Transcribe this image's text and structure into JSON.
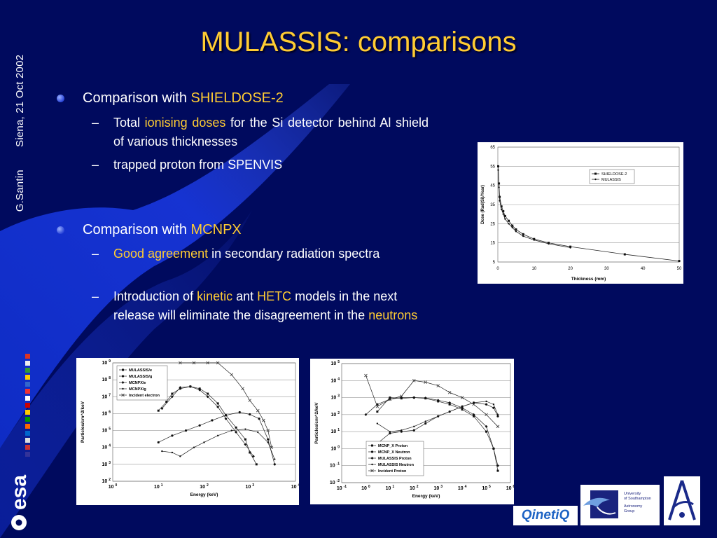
{
  "slide": {
    "title": "MULASSIS: comparisons",
    "side": {
      "author": "G.Santin",
      "event": "Siena, 21 Oct 2002"
    },
    "bullet1": {
      "prefix": "Comparison with ",
      "highlight": "SHIELDOSE-2",
      "subs": [
        {
          "t1": "Total ",
          "h1": "ionising doses",
          "t2": " for the Si detector behind Al shield of various thicknesses"
        },
        {
          "t1": "trapped proton from SPENVIS"
        }
      ]
    },
    "bullet2": {
      "prefix": "Comparison with ",
      "highlight": "MCNPX",
      "subs": [
        {
          "h1": "Good agreement",
          "t1": " in secondary radiation spectra"
        },
        {
          "t1": "Introduction of ",
          "h1": "kinetic",
          "t2": " ant ",
          "h2": "HETC",
          "t3": " models in the next release will eliminate the disagreement in the ",
          "h3": "neutrons"
        }
      ]
    }
  },
  "colors": {
    "background": "#000a5e",
    "title": "#ffcc33",
    "highlight": "#ffcc33",
    "text": "#ffffff"
  },
  "logos": {
    "qinetiq": "QinetiQ",
    "southampton": {
      "line1": "University",
      "line2": "of Southampton",
      "line3": "Astronomy",
      "line4": "Group"
    },
    "esa": "esa"
  },
  "chart_data": [
    {
      "type": "line",
      "ylabel": "Dose (Rad(Si)/Year)",
      "xlabel": "Thickness (mm)",
      "xlim": [
        0,
        50
      ],
      "ylim": [
        5,
        65
      ],
      "xticks": [
        "0",
        "10",
        "20",
        "30",
        "40",
        "50"
      ],
      "yticks": [
        "5",
        "15",
        "25",
        "35",
        "45",
        "55",
        "65"
      ],
      "grid": true,
      "legend": "top-right",
      "series": [
        {
          "name": "SHIELDOSE-2",
          "x": [
            0.1,
            0.3,
            0.5,
            1,
            1.5,
            2,
            3,
            4,
            5,
            7,
            10,
            14,
            20,
            35,
            50
          ],
          "y": [
            55,
            46,
            39,
            34,
            31.5,
            29,
            26.5,
            24,
            22,
            19.5,
            17,
            15,
            13,
            9,
            5.5
          ]
        },
        {
          "name": "MULASSIS",
          "x": [
            0.1,
            0.3,
            0.5,
            1,
            1.5,
            2,
            3,
            4,
            5,
            7,
            10,
            14,
            20
          ],
          "y": [
            53,
            44,
            37,
            32.5,
            30,
            27.5,
            25,
            23,
            21,
            18.5,
            16.5,
            14.5,
            12.5
          ]
        }
      ]
    },
    {
      "type": "line",
      "ylabel": "Particles/cm^2/keV",
      "xlabel": "Energy (keV)",
      "xscale": "log",
      "yscale": "log",
      "xticks": [
        "10^0",
        "10^1",
        "10^2",
        "10^3",
        "10^4"
      ],
      "yticks": [
        "10^2",
        "10^3",
        "10^4",
        "10^5",
        "10^6",
        "10^7",
        "10^8",
        "10^9"
      ],
      "legend": "top-left",
      "series": [
        {
          "name": "MULASSIS/e",
          "x": [
            10,
            15,
            20,
            30,
            50,
            80,
            120,
            200,
            300,
            500,
            800,
            1000,
            1400
          ],
          "y": [
            1500000.0,
            5000000.0,
            15000000.0,
            30000000.0,
            40000000.0,
            30000000.0,
            15000000.0,
            4000000.0,
            800000.0,
            150000.0,
            30000.0,
            5000.0,
            1000.0
          ]
        },
        {
          "name": "MULASSIS/g",
          "x": [
            10,
            20,
            40,
            80,
            150,
            300,
            600,
            1000,
            1600,
            2500,
            3500
          ],
          "y": [
            20000.0,
            50000.0,
            100000.0,
            200000.0,
            400000.0,
            800000.0,
            1200000.0,
            900000.0,
            500000.0,
            30000.0,
            1000.0
          ]
        },
        {
          "name": "MCNPX/e",
          "x": [
            12,
            20,
            30,
            50,
            80,
            120,
            200,
            300,
            500,
            800,
            1200
          ],
          "y": [
            2000000.0,
            10000000.0,
            35000000.0,
            40000000.0,
            25000000.0,
            10000000.0,
            2500000.0,
            500000.0,
            80000.0,
            15000.0,
            3000.0
          ]
        },
        {
          "name": "MCNPX/g",
          "x": [
            12,
            20,
            30,
            60,
            100,
            200,
            400,
            800,
            1500,
            2500,
            3500
          ],
          "y": [
            6000.0,
            5000.0,
            3000.0,
            10000.0,
            20000.0,
            50000.0,
            100000.0,
            120000.0,
            80000.0,
            20000.0,
            2000.0
          ]
        },
        {
          "name": "Incident electron",
          "x": [
            30,
            60,
            120,
            200,
            400,
            700,
            1000,
            1500,
            2000,
            2500,
            3000
          ],
          "y": [
            3000000000.0,
            2500000000.0,
            1800000000.0,
            1000000000.0,
            200000000.0,
            30000000.0,
            6000000.0,
            1500000.0,
            400000.0,
            100000.0,
            10000.0
          ]
        }
      ]
    },
    {
      "type": "line",
      "ylabel": "Particles/cm^2/keV",
      "xlabel": "Energy (keV)",
      "xscale": "log",
      "yscale": "log",
      "xticks": [
        "10^-1",
        "10^0",
        "10^1",
        "10^2",
        "10^3",
        "10^4",
        "10^5",
        "10^6"
      ],
      "yticks": [
        "10^-2",
        "10^-1",
        "10^0",
        "10^1",
        "10^2",
        "10^3",
        "10^4",
        "10^5"
      ],
      "legend": "bottom-left",
      "series": [
        {
          "name": "MCNP_X Proton",
          "x": [
            3,
            10,
            30,
            100,
            300,
            1000,
            3000,
            10000,
            30000,
            100000,
            200000,
            300000
          ],
          "y": [
            150,
            1000,
            900,
            1000,
            900,
            600,
            400,
            200,
            80,
            10,
            1,
            0.05
          ]
        },
        {
          "name": "MCNP_X Neutron",
          "x": [
            3,
            10,
            30,
            100,
            300,
            1000,
            3000,
            10000,
            30000,
            100000,
            200000,
            300000
          ],
          "y": [
            2,
            8,
            10,
            12,
            30,
            80,
            150,
            300,
            500,
            400,
            250,
            80
          ]
        },
        {
          "name": "MULASSIS Proton",
          "x": [
            1,
            3,
            10,
            30,
            100,
            300,
            1000,
            3000,
            10000,
            30000,
            100000,
            200000,
            300000
          ],
          "y": [
            100,
            400,
            800,
            1000,
            1000,
            950,
            700,
            500,
            250,
            100,
            20,
            1,
            0.1
          ]
        },
        {
          "name": "MULASSIS Neutron",
          "x": [
            3,
            10,
            30,
            100,
            300,
            1000,
            3000,
            10000,
            30000,
            100000,
            200000,
            300000
          ],
          "y": [
            30,
            10,
            12,
            20,
            40,
            80,
            150,
            300,
            500,
            600,
            400,
            100
          ]
        },
        {
          "name": "Incident Proton",
          "x": [
            1,
            3,
            10,
            30,
            100,
            300,
            1000,
            3000,
            10000,
            30000,
            100000,
            300000
          ],
          "y": [
            20000,
            300,
            800,
            1200,
            10000,
            8000,
            5000,
            2000,
            1000,
            400,
            100,
            20
          ]
        }
      ]
    }
  ]
}
